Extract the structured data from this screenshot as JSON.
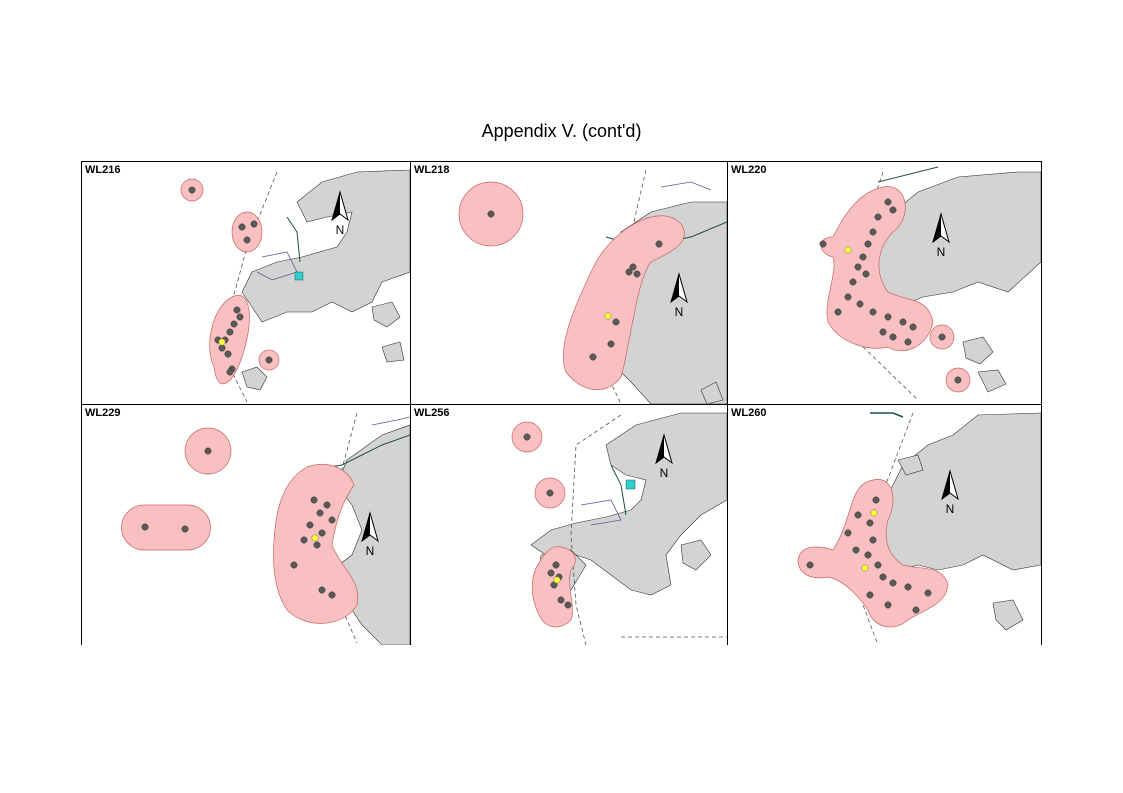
{
  "title": "Appendix V.  (cont'd)",
  "north_label": "N",
  "panels": [
    {
      "id": "WL216",
      "label": "WL216"
    },
    {
      "id": "WL218",
      "label": "WL218"
    },
    {
      "id": "WL220",
      "label": "WL220"
    },
    {
      "id": "WL229",
      "label": "WL229"
    },
    {
      "id": "WL256",
      "label": "WL256"
    },
    {
      "id": "WL260",
      "label": "WL260"
    }
  ],
  "colors": {
    "land": "#d3d3d3",
    "range_polygon": "#f8c0c0",
    "range_outline": "#c86464",
    "sighting_point": "#5a5a5a",
    "highlight_point": "#ffff33",
    "boundary_line": "#555555",
    "road_line": "#1a5050",
    "reclamation_line": "#5a5aa0",
    "marker": "#33cccc"
  }
}
